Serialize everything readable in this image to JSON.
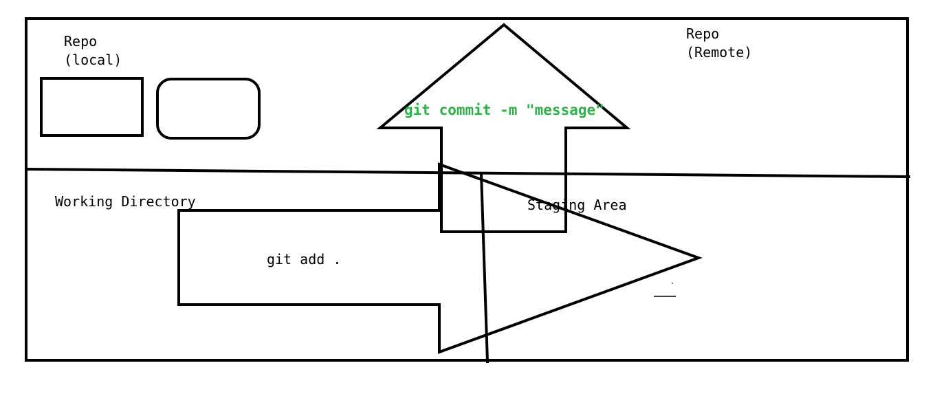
{
  "labels": {
    "repo_local_line1": "Repo",
    "repo_local_line2": "(local)",
    "repo_remote_line1": "Repo",
    "repo_remote_line2": "(Remote)",
    "working_directory": "Working Directory",
    "staging_area": "Staging Area",
    "git_add": "git add .",
    "git_commit": "git commit -m \"message\""
  },
  "colors": {
    "stroke": "#000000",
    "commit_text": "#2eb24a",
    "background": "#ffffff"
  }
}
